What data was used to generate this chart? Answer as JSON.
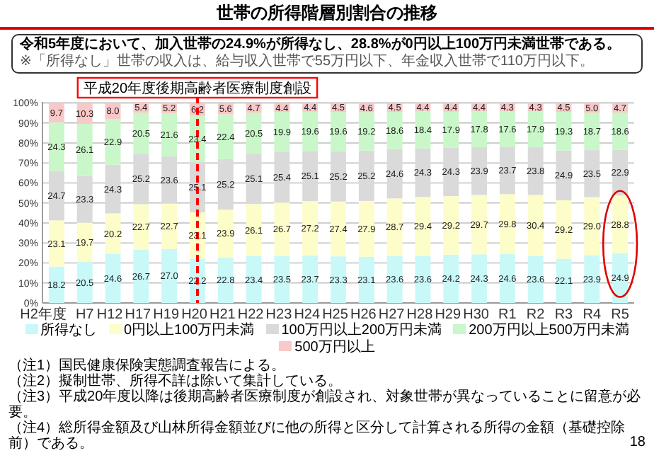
{
  "chart_data": {
    "type": "bar",
    "stacked": true,
    "title": "世帯の所得階層別割合の推移",
    "subtitle": "令和5年度において、加入世帯の24.9%が所得なし、28.8%が0円以上100万円未満世帯である。",
    "categories": [
      "H2年度",
      "H7",
      "H12",
      "H17",
      "H19",
      "H20",
      "H21",
      "H22",
      "H23",
      "H24",
      "H25",
      "H26",
      "H27",
      "H28",
      "H29",
      "H30",
      "R1",
      "R2",
      "R3",
      "R4",
      "R5"
    ],
    "series": [
      {
        "name": "所得なし",
        "color": "#c9f8f8",
        "values": [
          18.2,
          20.5,
          24.6,
          26.7,
          27.0,
          22.2,
          22.8,
          23.4,
          23.5,
          23.7,
          23.3,
          23.1,
          23.6,
          23.6,
          24.2,
          24.3,
          24.6,
          23.6,
          22.1,
          23.9,
          24.9
        ],
        "value_labels": [
          "18.2",
          "20.5",
          "24.6",
          "26.7",
          "27.0",
          "22.2",
          "22.8",
          "23.4",
          "23.5",
          "23.7",
          "23.3",
          "23.1",
          "23.6",
          "23.6",
          "24.2",
          "24.3",
          "24.6",
          "23.6",
          "22.1",
          "23.9",
          "24.9"
        ]
      },
      {
        "name": "0円以上100万円未満",
        "color": "#fdfdca",
        "values": [
          23.1,
          19.7,
          20.2,
          22.7,
          22.7,
          23.1,
          23.9,
          26.1,
          26.7,
          27.2,
          27.4,
          27.9,
          28.7,
          29.4,
          29.2,
          29.7,
          29.8,
          30.4,
          29.2,
          29.0,
          28.8
        ],
        "value_labels": [
          "23.1",
          "19.7",
          "20.2",
          "22.7",
          "22.7",
          "23.1",
          "23.9",
          "26.1",
          "26.7",
          "27.2",
          "27.4",
          "27.9",
          "28.7",
          "29.4",
          "29.2",
          "29.7",
          "29.8",
          "30.4",
          "29.2",
          "29.0",
          "28.8"
        ]
      },
      {
        "name": "100万円以上200万円未満",
        "color": "#dadada",
        "values": [
          24.7,
          23.3,
          24.3,
          25.2,
          23.6,
          25.1,
          25.2,
          25.1,
          25.4,
          25.1,
          25.2,
          25.2,
          24.6,
          24.3,
          24.3,
          23.9,
          23.7,
          23.8,
          24.9,
          23.5,
          22.9
        ],
        "value_labels": [
          "24.7",
          "23.3",
          "24.3",
          "25.2",
          "23.6",
          "25.1",
          "25.2",
          "25.1",
          "25.4",
          "25.1",
          "25.2",
          "25.2",
          "24.6",
          "24.3",
          "24.3",
          "23.9",
          "23.7",
          "23.8",
          "24.9",
          "23.5",
          "22.9"
        ]
      },
      {
        "name": "200万円以上500万円未満",
        "color": "#c9f7c9",
        "values": [
          24.3,
          26.1,
          22.9,
          20.5,
          21.6,
          23.4,
          22.4,
          20.5,
          19.9,
          19.6,
          19.6,
          19.2,
          18.6,
          18.4,
          17.9,
          17.8,
          17.6,
          17.9,
          19.3,
          18.7,
          18.6
        ],
        "value_labels": [
          "24.3",
          "26.1",
          "22.9",
          "20.5",
          "21.6",
          "23.4",
          "22.4",
          "20.5",
          "19.9",
          "19.6",
          "19.6",
          "19.2",
          "18.6",
          "18.4",
          "17.9",
          "17.8",
          "17.6",
          "17.9",
          "19.3",
          "18.7",
          "18.6"
        ]
      },
      {
        "name": "500万円以上",
        "color": "#f9c8c8",
        "values": [
          9.7,
          10.3,
          8.0,
          5.4,
          5.2,
          6.2,
          5.6,
          4.7,
          4.4,
          4.4,
          4.5,
          4.6,
          4.5,
          4.4,
          4.4,
          4.4,
          4.3,
          4.3,
          4.5,
          5.0,
          4.7
        ],
        "value_labels": [
          "9.7",
          "10.3",
          "8.0",
          "5.4",
          "5.2",
          "6.2",
          "5.6",
          "4.7",
          "4.4",
          "4.4",
          "4.5",
          "4.6",
          "4.5",
          "4.4",
          "4.4",
          "4.4",
          "4.3",
          "4.3",
          "4.5",
          "5.0",
          "4.7"
        ]
      }
    ],
    "ylim": [
      0,
      100.5
    ],
    "yticks": [
      {
        "value": 0,
        "label": "0%"
      },
      {
        "value": 10,
        "label": "10%"
      },
      {
        "value": 20,
        "label": "20%"
      },
      {
        "value": 30,
        "label": "30%"
      },
      {
        "value": 40,
        "label": "40%"
      },
      {
        "value": 50,
        "label": "50%"
      },
      {
        "value": 60,
        "label": "60%"
      },
      {
        "value": 70,
        "label": "70%"
      },
      {
        "value": 80,
        "label": "80%"
      },
      {
        "value": 90,
        "label": "90%"
      },
      {
        "value": 100,
        "label": "100%"
      }
    ],
    "grid": "y",
    "legend": "bottom",
    "ref_lines": [
      {
        "axis": "x",
        "value": "H20",
        "label": "平成20年度後期高齢者医療制度創設",
        "color": "#ff0000",
        "line_style": "dashed"
      }
    ],
    "annotations": [
      "※「所得なし」世帯の収入は、給与収入世帯で55万円以下、年金収入世帯で110万円以下。",
      "（注1）国民健康保険実態調査報告による。",
      "（注2）擬制世帯、所得不詳は除いて集計している。",
      "（注3）平成20年度以降は後期高齢者医療制度が創設され、対象世帯が異なっていることに留意が必要。",
      "（注4）総所得金額及び山林所得金額並びに他の所得と区分して計算される所得の金額（基礎控除前）である。",
      "18"
    ]
  }
}
